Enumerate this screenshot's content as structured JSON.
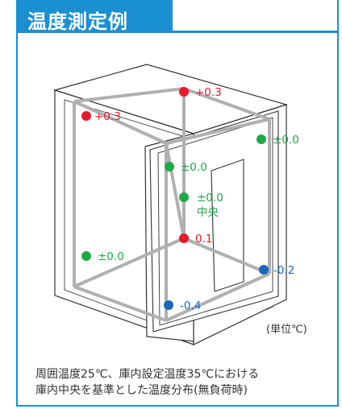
{
  "title": "温度測定例",
  "colors": {
    "accent": "#1a90d0",
    "hot": "#e8192c",
    "neutral": "#1ea84a",
    "cold": "#1668b8"
  },
  "points": [
    {
      "value": "+0.3",
      "color": "red"
    },
    {
      "value": "+0.3",
      "color": "red"
    },
    {
      "value": "±0.0",
      "color": "green"
    },
    {
      "value": "±0.0",
      "color": "green"
    },
    {
      "value": "±0.0",
      "sub": "中央",
      "color": "green"
    },
    {
      "value": "0.1",
      "color": "red"
    },
    {
      "value": "±0.0",
      "color": "green"
    },
    {
      "value": "-0.2",
      "color": "blue"
    },
    {
      "value": "-0.4",
      "color": "blue"
    }
  ],
  "unit_label": "(単位℃)",
  "caption": {
    "line1": "周囲温度25℃、庫内設定温度35℃における",
    "line2": "庫内中央を基準とした温度分布(無負荷時)"
  }
}
